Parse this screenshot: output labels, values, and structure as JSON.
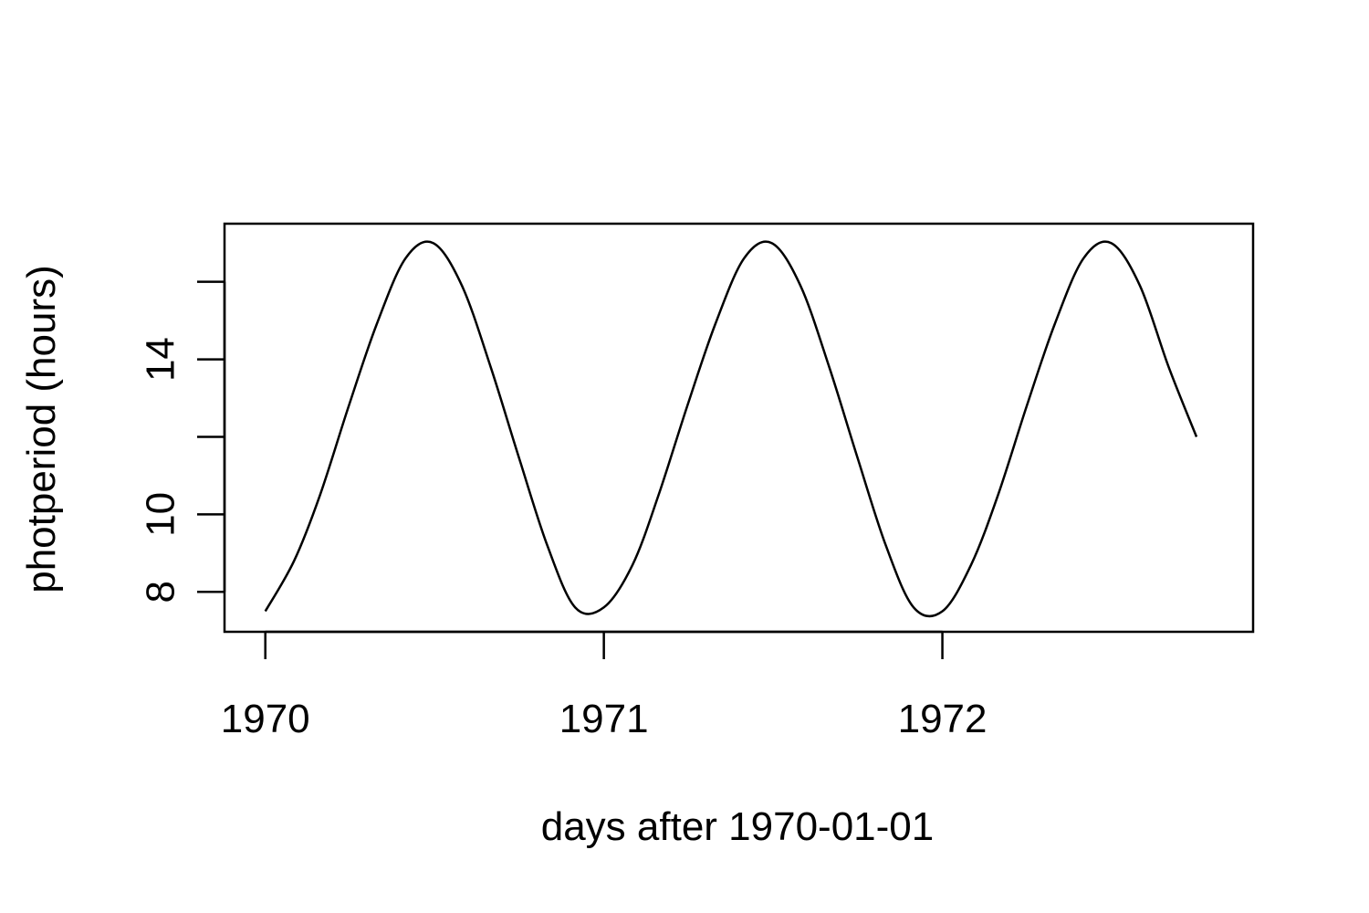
{
  "chart_data": {
    "type": "line",
    "title": "",
    "xlabel": "days after 1970-01-01",
    "ylabel": "photperiod (hours)",
    "xlim": [
      "1969-11-18",
      "1972-12-01"
    ],
    "ylim": [
      6.97,
      17.5
    ],
    "x_ticks": [
      {
        "value": "1970-01-01",
        "label": "1970"
      },
      {
        "value": "1971-01-01",
        "label": "1971"
      },
      {
        "value": "1972-01-01",
        "label": "1972"
      }
    ],
    "y_ticks": [
      {
        "value": 8,
        "label": "8"
      },
      {
        "value": 10,
        "label": "10"
      },
      {
        "value": 12,
        "label": ""
      },
      {
        "value": 14,
        "label": "14"
      },
      {
        "value": 16,
        "label": ""
      }
    ],
    "grid": false,
    "legend": "none",
    "line_color": "#000000",
    "series": [
      {
        "x": [
          "1970-01-01",
          "1970-02-01",
          "1970-03-01",
          "1970-04-01",
          "1970-05-01",
          "1970-06-01",
          "1970-07-01",
          "1970-08-01",
          "1970-09-01",
          "1970-10-01",
          "1970-11-01",
          "1970-12-01",
          "1971-01-01",
          "1971-02-01",
          "1971-03-01",
          "1971-04-01",
          "1971-05-01",
          "1971-06-01",
          "1971-07-01",
          "1971-08-01",
          "1971-09-01",
          "1971-10-01",
          "1971-11-01",
          "1971-12-01",
          "1972-01-01",
          "1972-02-01",
          "1972-03-01",
          "1972-04-01",
          "1972-05-01",
          "1972-06-01",
          "1972-07-01",
          "1972-08-01",
          "1972-09-01",
          "1972-10-01"
        ],
        "y": [
          7.5,
          8.8,
          10.5,
          12.8,
          14.9,
          16.6,
          17.0,
          15.9,
          13.8,
          11.5,
          9.2,
          7.6,
          7.6,
          8.7,
          10.5,
          12.8,
          14.9,
          16.6,
          17.0,
          15.9,
          13.8,
          11.5,
          9.2,
          7.6,
          7.5,
          8.7,
          10.5,
          12.8,
          14.9,
          16.6,
          17.0,
          15.9,
          13.8,
          12.0
        ]
      }
    ]
  }
}
